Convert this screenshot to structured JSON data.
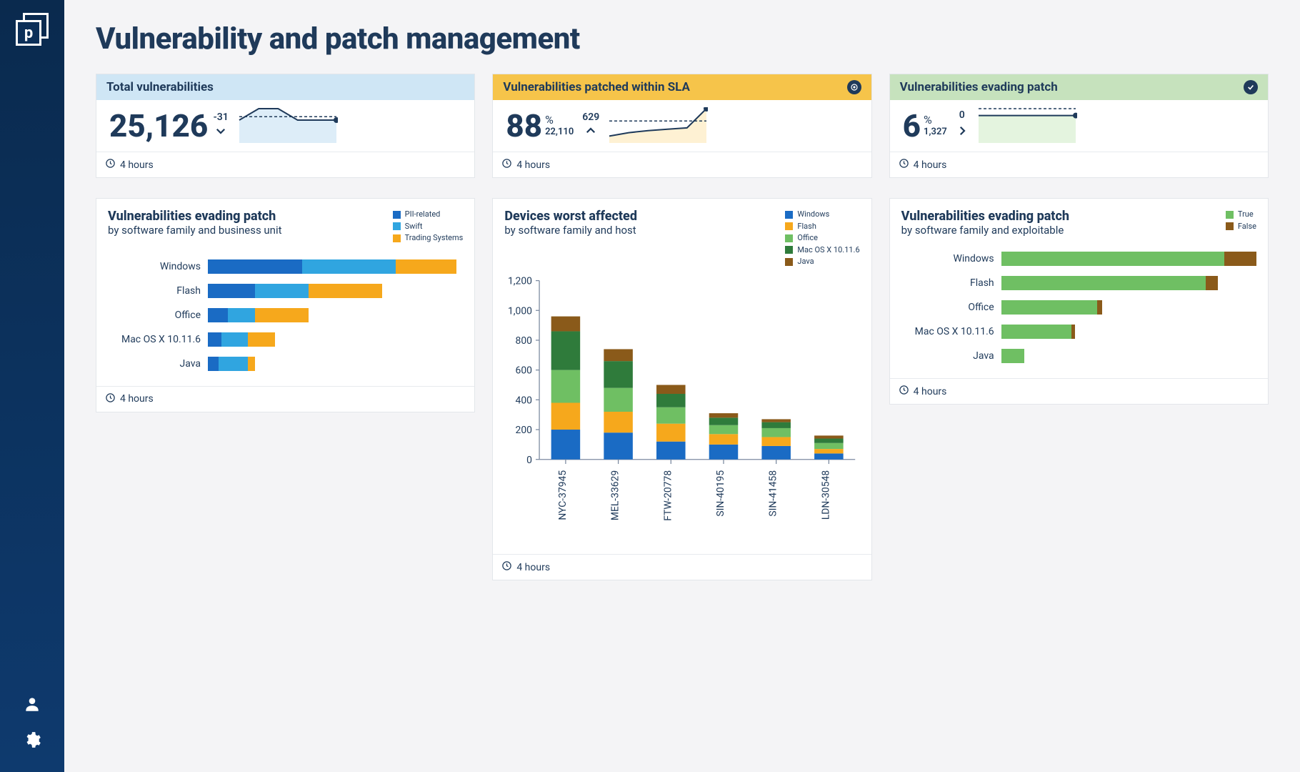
{
  "page": {
    "title": "Vulnerability and patch management"
  },
  "colors": {
    "navy": "#1f3a5a",
    "blue": "#1a6bc4",
    "lightblue": "#30a5e0",
    "orange": "#f6a81c",
    "darkgold": "#a07114",
    "green": "#6fbf63",
    "darkgreen": "#2f7b3b",
    "olive": "#8a5a1a"
  },
  "kpi": [
    {
      "id": "total",
      "title": "Total vulnerabilities",
      "header_bg": "#cfe6f5",
      "value": "25,126",
      "delta": "-31",
      "arrow": "down",
      "footer": "4 hours",
      "spark": {
        "points": [
          2,
          3,
          3,
          2,
          2,
          2
        ],
        "target": 2.3,
        "fill": "#cfe6f5",
        "line": "#1f3a5a"
      }
    },
    {
      "id": "sla",
      "title": "Vulnerabilities patched within SLA",
      "header_bg": "#f6c44a",
      "value": "88",
      "percent": true,
      "subvalue": "22,110",
      "delta": "629",
      "arrow": "up",
      "status_icon": "target",
      "footer": "4 hours",
      "spark": {
        "points": [
          1,
          1.5,
          1.8,
          2,
          2.2,
          5
        ],
        "target": 3.2,
        "fill": "#fdebc0",
        "line": "#1f3a5a"
      }
    },
    {
      "id": "evade",
      "title": "Vulnerabilities evading patch",
      "header_bg": "#c6e2bd",
      "value": "6",
      "percent": true,
      "subvalue": "1,327",
      "delta": "0",
      "arrow": "right",
      "status_icon": "check",
      "footer": "4 hours",
      "spark": {
        "points": [
          2,
          2,
          2,
          2,
          2,
          2
        ],
        "target": 2.5,
        "fill": "#d9efd2",
        "line": "#1f3a5a"
      }
    }
  ],
  "chart_bu": {
    "title": "Vulnerabilities evading patch",
    "subtitle": "by software family and business unit",
    "footer": "4 hours",
    "legend": [
      {
        "label": "PII-related",
        "color": "#1a6bc4"
      },
      {
        "label": "Swift",
        "color": "#30a5e0"
      },
      {
        "label": "Trading Systems",
        "color": "#f6a81c"
      }
    ],
    "max": 190,
    "rows": [
      {
        "label": "Windows",
        "segs": [
          70,
          70,
          45
        ]
      },
      {
        "label": "Flash",
        "segs": [
          35,
          40,
          55
        ]
      },
      {
        "label": "Office",
        "segs": [
          15,
          20,
          40
        ]
      },
      {
        "label": "Mac OS X 10.11.6",
        "segs": [
          10,
          20,
          20
        ]
      },
      {
        "label": "Java",
        "segs": [
          8,
          22,
          5
        ]
      }
    ]
  },
  "chart_dev": {
    "title": "Devices worst affected",
    "subtitle": "by software family and host",
    "footer": "4 hours",
    "legend": [
      {
        "label": "Windows",
        "color": "#1a6bc4"
      },
      {
        "label": "Flash",
        "color": "#f6a81c"
      },
      {
        "label": "Office",
        "color": "#6fbf63"
      },
      {
        "label": "Mac OS X 10.11.6",
        "color": "#2f7b3b"
      },
      {
        "label": "Java",
        "color": "#8a5a1a"
      }
    ],
    "y": {
      "min": 0,
      "max": 1200,
      "step": 200
    },
    "categories": [
      "NYC-37945",
      "MEL-33629",
      "FTW-20778",
      "SIN-40195",
      "SIN-41458",
      "LDN-30548"
    ],
    "stacks": [
      [
        200,
        180,
        220,
        260,
        100
      ],
      [
        180,
        140,
        160,
        180,
        80
      ],
      [
        120,
        120,
        110,
        90,
        60
      ],
      [
        100,
        70,
        60,
        50,
        30
      ],
      [
        90,
        60,
        60,
        40,
        20
      ],
      [
        40,
        30,
        40,
        30,
        20
      ]
    ]
  },
  "chart_ex": {
    "title": "Vulnerabilities evading patch",
    "subtitle": "by software family and exploitable",
    "footer": "4 hours",
    "legend": [
      {
        "label": "True",
        "color": "#6fbf63"
      },
      {
        "label": "False",
        "color": "#8a5a1a"
      }
    ],
    "max": 200,
    "rows": [
      {
        "label": "Windows",
        "segs": [
          175,
          25
        ]
      },
      {
        "label": "Flash",
        "segs": [
          160,
          10
        ]
      },
      {
        "label": "Office",
        "segs": [
          75,
          4
        ]
      },
      {
        "label": "Mac OS X 10.11.6",
        "segs": [
          55,
          3
        ]
      },
      {
        "label": "Java",
        "segs": [
          18,
          0
        ]
      }
    ]
  }
}
